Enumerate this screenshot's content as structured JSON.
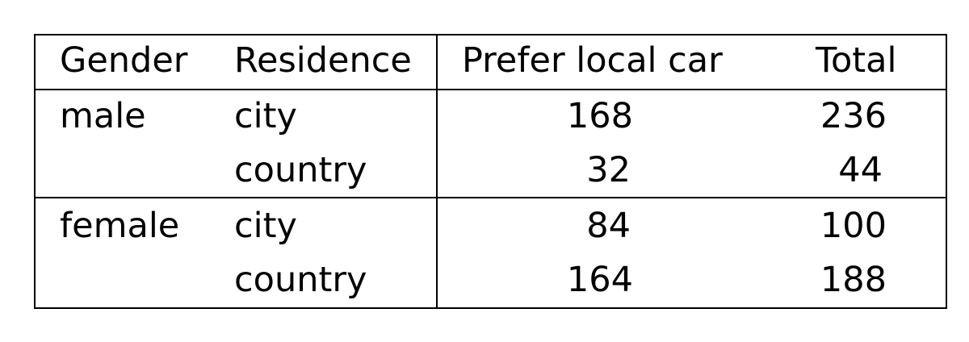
{
  "table": {
    "headers": [
      "Gender",
      "Residence",
      "Prefer local car",
      "Total"
    ],
    "groups": [
      {
        "gender": "male",
        "rows": [
          {
            "residence": "city",
            "prefer": "168",
            "total": "236"
          },
          {
            "residence": "country",
            "prefer": "32",
            "total": "44"
          }
        ]
      },
      {
        "gender": "female",
        "rows": [
          {
            "residence": "city",
            "prefer": "84",
            "total": "100"
          },
          {
            "residence": "country",
            "prefer": "164",
            "total": "188"
          }
        ]
      }
    ]
  }
}
